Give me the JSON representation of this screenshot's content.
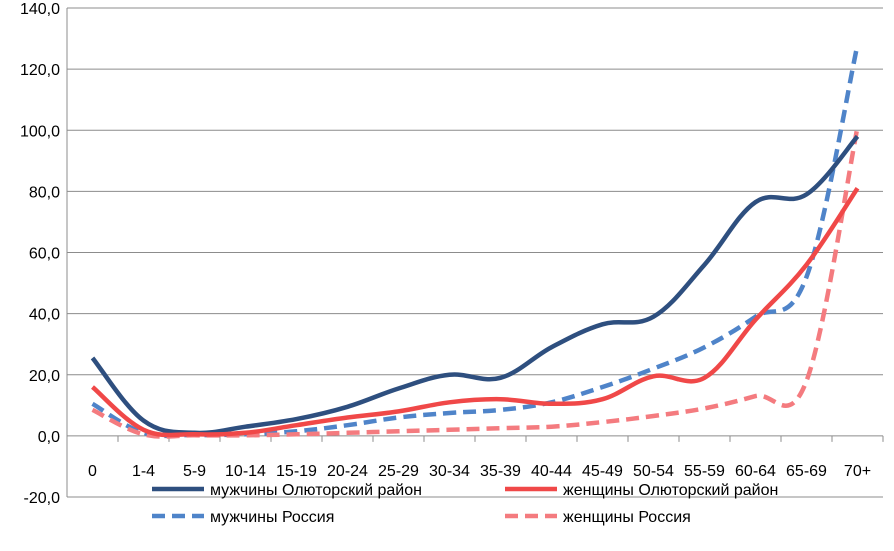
{
  "chart_data": {
    "type": "line",
    "title": "",
    "xlabel": "",
    "ylabel": "",
    "categories": [
      "0",
      "1-4",
      "5-9",
      "10-14",
      "15-19",
      "20-24",
      "25-29",
      "30-34",
      "35-39",
      "40-44",
      "45-49",
      "50-54",
      "55-59",
      "60-64",
      "65-69",
      "70+"
    ],
    "ylim": [
      -20,
      140
    ],
    "yticks": [
      "-20,0",
      "0,0",
      "20,0",
      "40,0",
      "60,0",
      "80,0",
      "100,0",
      "120,0",
      "140,0"
    ],
    "grid": true,
    "legend_position": "bottom",
    "series": [
      {
        "name": "мужчины Олюторский район",
        "color": "#2E4F7F",
        "dashed": false,
        "values": [
          25.5,
          5.0,
          1.0,
          3.0,
          5.5,
          9.5,
          15.5,
          20.0,
          19.0,
          29.0,
          36.5,
          39.0,
          56.0,
          76.5,
          79.0,
          98.0
        ]
      },
      {
        "name": "женщины Олюторский район",
        "color": "#F04848",
        "dashed": false,
        "values": [
          16.0,
          2.0,
          0.5,
          1.0,
          3.5,
          6.0,
          8.0,
          11.0,
          12.0,
          10.5,
          12.0,
          19.5,
          19.0,
          38.0,
          56.0,
          81.0
        ]
      },
      {
        "name": "мужчины Россия",
        "color": "#4F84C9",
        "dashed": true,
        "values": [
          10.5,
          1.0,
          0.3,
          0.5,
          1.5,
          3.5,
          6.0,
          7.5,
          8.5,
          11.0,
          16.0,
          22.0,
          29.0,
          39.0,
          52.0,
          128.0
        ]
      },
      {
        "name": "женщины Россия",
        "color": "#F47B7F",
        "dashed": true,
        "values": [
          8.5,
          0.5,
          0.2,
          0.2,
          0.5,
          1.0,
          1.5,
          2.0,
          2.5,
          3.0,
          4.5,
          6.5,
          9.0,
          13.0,
          18.0,
          101.0
        ]
      }
    ]
  }
}
